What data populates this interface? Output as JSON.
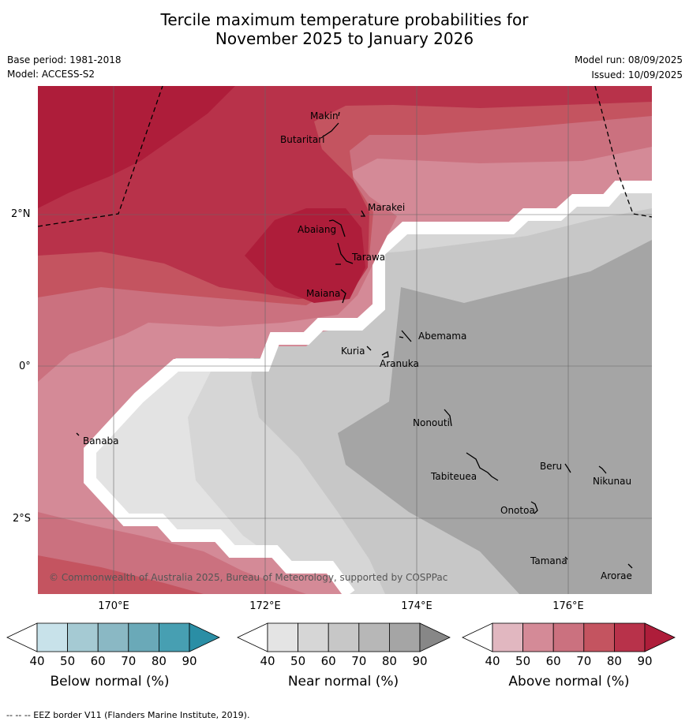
{
  "title_line1": "Tercile maximum temperature probabilities for",
  "title_line2": "November 2025 to January 2026",
  "base_period": "Base period: 1981-2018",
  "model": "Model: ACCESS-S2",
  "model_run": "Model run: 08/09/2025",
  "issued": "Issued: 10/09/2025",
  "copyright": "© Commonwealth of Australia 2025, Bureau of Meteorology, supported by COSPPac",
  "lat_labels": [
    "2°N",
    "0°",
    "2°S"
  ],
  "lon_labels": [
    "170°E",
    "172°E",
    "174°E",
    "176°E"
  ],
  "islands": [
    "Makin",
    "Butaritari",
    "Marakei",
    "Abaiang",
    "Tarawa",
    "Maiana",
    "Abemama",
    "Kuria",
    "Aranuka",
    "Nonouti",
    "Banaba",
    "Tabiteuea",
    "Beru",
    "Nikunau",
    "Onotoa",
    "Tamana",
    "Arorae"
  ],
  "colorbars": [
    {
      "label": "Below normal (%)",
      "ticks": [
        "40",
        "50",
        "60",
        "70",
        "80",
        "90"
      ],
      "colors": [
        "#ffffff",
        "#c8e2ea",
        "#a5cad3",
        "#8ab8c4",
        "#6aa9b8",
        "#479fb2",
        "#2a8ea5"
      ]
    },
    {
      "label": "Near normal (%)",
      "ticks": [
        "40",
        "50",
        "60",
        "70",
        "80",
        "90"
      ],
      "colors": [
        "#ffffff",
        "#e4e4e4",
        "#d6d6d6",
        "#c7c7c7",
        "#b7b7b7",
        "#a5a5a5",
        "#878787"
      ]
    },
    {
      "label": "Above normal (%)",
      "ticks": [
        "40",
        "50",
        "60",
        "70",
        "80",
        "90"
      ],
      "colors": [
        "#ffffff",
        "#e1b7c0",
        "#d48a97",
        "#cb717f",
        "#c45460",
        "#b8324a",
        "#ae1d3a"
      ]
    }
  ],
  "footnote": "--  --  -- EEZ border V11 (Flanders Marine Institute, 2019)."
}
